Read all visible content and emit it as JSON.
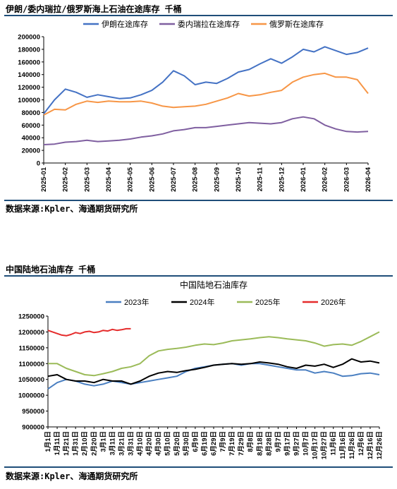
{
  "chart1": {
    "title": "伊朗/委内瑞拉/俄罗斯海上石油在途库存  千桶",
    "source": "数据来源:Kpler、海通期货研究所",
    "chart_data": {
      "type": "line",
      "x_ticks": [
        "2025-01",
        "2025-02",
        "2025-03",
        "2025-04",
        "2025-05",
        "2025-06",
        "2025-07",
        "2025-08",
        "2025-09",
        "2025-10",
        "2025-11",
        "2025-12",
        "2026-01",
        "2026-02",
        "2026-03",
        "2026-04"
      ],
      "ylim": [
        0,
        200000
      ],
      "y_ticks": [
        "0",
        "20000",
        "40000",
        "60000",
        "80000",
        "100000",
        "120000",
        "140000",
        "160000",
        "180000",
        "200000"
      ],
      "grid": false,
      "legend": "top",
      "series": [
        {
          "name": "伊朗在途库存",
          "color": "#4472c4",
          "x": [
            0,
            0.5,
            1,
            1.5,
            2,
            2.5,
            3,
            3.5,
            4,
            4.5,
            5,
            5.5,
            6,
            6.5,
            7,
            7.5,
            8,
            8.5,
            9,
            9.5,
            10,
            10.5,
            11,
            11.5,
            12,
            12.5,
            13,
            13.5,
            14,
            14.5,
            15
          ],
          "values": [
            78000,
            100000,
            117000,
            112000,
            104000,
            108000,
            105000,
            102000,
            103000,
            108000,
            115000,
            128000,
            146000,
            138000,
            124000,
            128000,
            126000,
            134000,
            144000,
            148000,
            157000,
            165000,
            158000,
            168000,
            180000,
            176000,
            184000,
            178000,
            172000,
            175000,
            182000
          ]
        },
        {
          "name": "委内瑞拉在途库存",
          "color": "#7f5fa0",
          "x": [
            0,
            0.5,
            1,
            1.5,
            2,
            2.5,
            3,
            3.5,
            4,
            4.5,
            5,
            5.5,
            6,
            6.5,
            7,
            7.5,
            8,
            8.5,
            9,
            9.5,
            10,
            10.5,
            11,
            11.5,
            12,
            12.5,
            13,
            13.5,
            14,
            14.5,
            15
          ],
          "values": [
            29000,
            30000,
            33000,
            34000,
            36000,
            34000,
            35000,
            36000,
            38000,
            41000,
            43000,
            46000,
            51000,
            53000,
            56000,
            56000,
            58000,
            60000,
            62000,
            64000,
            63000,
            62000,
            64000,
            70000,
            73000,
            70000,
            60000,
            54000,
            50000,
            49000,
            50000
          ]
        },
        {
          "name": "俄罗斯在途库存",
          "color": "#f79646",
          "x": [
            0,
            0.5,
            1,
            1.5,
            2,
            2.5,
            3,
            3.5,
            4,
            4.5,
            5,
            5.5,
            6,
            6.5,
            7,
            7.5,
            8,
            8.5,
            9,
            9.5,
            10,
            10.5,
            11,
            11.5,
            12,
            12.5,
            13,
            13.5,
            14,
            14.5,
            15
          ],
          "values": [
            76000,
            85000,
            84000,
            93000,
            98000,
            96000,
            98000,
            97000,
            97000,
            98000,
            95000,
            90000,
            88000,
            89000,
            90000,
            93000,
            98000,
            103000,
            110000,
            106000,
            108000,
            112000,
            115000,
            128000,
            136000,
            140000,
            142000,
            136000,
            136000,
            132000,
            110000
          ]
        }
      ]
    }
  },
  "chart2": {
    "header": "中国陆地石油库存  千桶",
    "source": "数据来源:Kpler、海通期货研究所",
    "chart_data": {
      "type": "line",
      "title": "中国陆地石油库存",
      "x_ticks": [
        "1月1日",
        "1月11日",
        "1月21日",
        "1月31日",
        "2月10日",
        "2月20日",
        "3月1日",
        "3月11日",
        "3月21日",
        "3月31日",
        "4月10日",
        "4月20日",
        "4月30日",
        "5月10日",
        "5月20日",
        "5月30日",
        "6月9日",
        "6月19日",
        "6月29日",
        "7月9日",
        "7月19日",
        "7月29日",
        "8月8日",
        "8月18日",
        "8月28日",
        "9月7日",
        "9月17日",
        "9月27日",
        "10月7日",
        "10月17日",
        "10月27日",
        "11月6日",
        "11月16日",
        "11月26日",
        "12月6日",
        "12月16日",
        "12月26日"
      ],
      "ylim": [
        900000,
        1250000
      ],
      "y_ticks": [
        "900000",
        "950000",
        "1000000",
        "1050000",
        "1100000",
        "1150000",
        "1200000",
        "1250000"
      ],
      "grid": false,
      "legend": "top",
      "series": [
        {
          "name": "2023年",
          "color": "#4a7fc1",
          "x": [
            0,
            10,
            20,
            30,
            40,
            50,
            60,
            70,
            80,
            90,
            100,
            110,
            120,
            130,
            140,
            150,
            160,
            170,
            180,
            190,
            200,
            210,
            220,
            230,
            240,
            250,
            260,
            270,
            280,
            290,
            300,
            310,
            320,
            330,
            340,
            350,
            360
          ],
          "values": [
            1020000,
            1040000,
            1050000,
            1045000,
            1035000,
            1030000,
            1035000,
            1045000,
            1040000,
            1035000,
            1040000,
            1045000,
            1050000,
            1055000,
            1060000,
            1075000,
            1085000,
            1090000,
            1095000,
            1098000,
            1100000,
            1095000,
            1100000,
            1100000,
            1095000,
            1090000,
            1085000,
            1080000,
            1080000,
            1070000,
            1075000,
            1070000,
            1060000,
            1062000,
            1068000,
            1070000,
            1065000
          ]
        },
        {
          "name": "2024年",
          "color": "#000000",
          "x": [
            0,
            10,
            20,
            30,
            40,
            50,
            60,
            70,
            80,
            90,
            100,
            110,
            120,
            130,
            140,
            150,
            160,
            170,
            180,
            190,
            200,
            210,
            220,
            230,
            240,
            250,
            260,
            270,
            280,
            290,
            300,
            310,
            320,
            330,
            340,
            350,
            360
          ],
          "values": [
            1060000,
            1065000,
            1050000,
            1045000,
            1045000,
            1040000,
            1050000,
            1045000,
            1045000,
            1035000,
            1045000,
            1060000,
            1070000,
            1075000,
            1072000,
            1078000,
            1082000,
            1088000,
            1095000,
            1098000,
            1100000,
            1098000,
            1100000,
            1105000,
            1102000,
            1098000,
            1090000,
            1085000,
            1095000,
            1092000,
            1098000,
            1088000,
            1098000,
            1115000,
            1105000,
            1108000,
            1102000
          ]
        },
        {
          "name": "2025年",
          "color": "#9bbb59",
          "x": [
            0,
            10,
            20,
            30,
            40,
            50,
            60,
            70,
            80,
            90,
            100,
            110,
            120,
            130,
            140,
            150,
            160,
            170,
            180,
            190,
            200,
            210,
            220,
            230,
            240,
            250,
            260,
            270,
            280,
            290,
            300,
            310,
            320,
            330,
            340,
            350,
            360
          ],
          "values": [
            1100000,
            1100000,
            1085000,
            1075000,
            1065000,
            1062000,
            1068000,
            1075000,
            1085000,
            1090000,
            1100000,
            1125000,
            1140000,
            1145000,
            1148000,
            1152000,
            1158000,
            1162000,
            1160000,
            1165000,
            1172000,
            1175000,
            1178000,
            1182000,
            1185000,
            1182000,
            1178000,
            1175000,
            1172000,
            1165000,
            1155000,
            1160000,
            1162000,
            1158000,
            1170000,
            1185000,
            1200000
          ]
        },
        {
          "name": "2026年",
          "color": "#e52b2b",
          "x": [
            0,
            5,
            10,
            15,
            20,
            25,
            30,
            35,
            40,
            45,
            50,
            55,
            60,
            65,
            70,
            75,
            80,
            85,
            90
          ],
          "values": [
            1205000,
            1200000,
            1195000,
            1190000,
            1188000,
            1192000,
            1198000,
            1195000,
            1200000,
            1202000,
            1198000,
            1200000,
            1205000,
            1203000,
            1208000,
            1205000,
            1207000,
            1210000,
            1210000
          ]
        }
      ]
    }
  }
}
